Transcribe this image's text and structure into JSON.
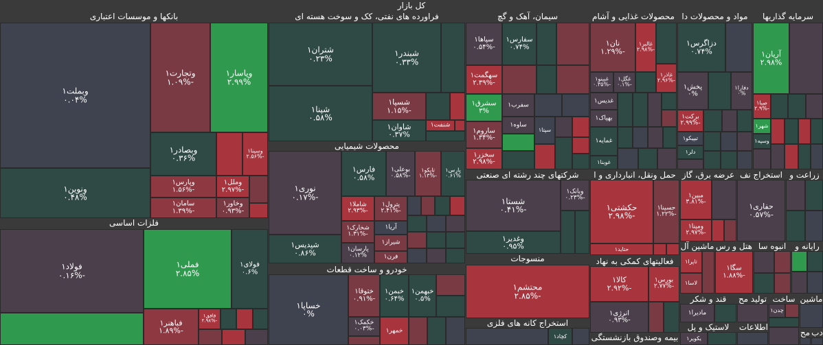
{
  "title": "کل بازار",
  "sectors": [
    {
      "id": "banks",
      "name": "بانکها و موسسات اعتباری"
    },
    {
      "id": "refinery",
      "name": "فراورده های نفتی، کک و سوخت هسته ای"
    },
    {
      "id": "cement",
      "name": "سیمان، آهک و گچ"
    },
    {
      "id": "food",
      "name": "محصولات غذایی و آشام"
    },
    {
      "id": "materials",
      "name": "مواد و محصولات دا"
    },
    {
      "id": "invest",
      "name": "سرمایه گذاریها"
    },
    {
      "id": "chemicals",
      "name": "محصولات شیمیایی"
    },
    {
      "id": "metals",
      "name": "فلزات اساسی"
    },
    {
      "id": "auto",
      "name": "خودرو و ساخت قطعات"
    },
    {
      "id": "multi",
      "name": "شرکتهای چند رشته ای صنعتی"
    },
    {
      "id": "transport",
      "name": "حمل ونقل، انبارداری و ا"
    },
    {
      "id": "utilities",
      "name": "عرضه برق، گاز"
    },
    {
      "id": "oilex",
      "name": "استخراج نف"
    },
    {
      "id": "agri",
      "name": "زراعت و"
    },
    {
      "id": "textile",
      "name": "منسوجات"
    },
    {
      "id": "support",
      "name": "فعالیتهای کمکی به نهاد"
    },
    {
      "id": "computer",
      "name": "رایانه و"
    },
    {
      "id": "cars",
      "name": "ماشین آل"
    },
    {
      "id": "hotel",
      "name": "هتل و رس"
    },
    {
      "id": "mass",
      "name": "انبوه سا"
    },
    {
      "id": "ores",
      "name": "استخراج کانه های فلزی"
    },
    {
      "id": "sugar",
      "name": "قند و شکر"
    },
    {
      "id": "pharma",
      "name": "تولید مح"
    },
    {
      "id": "build",
      "name": "ساخت"
    },
    {
      "id": "machine",
      "name": "ماشین"
    },
    {
      "id": "insurance",
      "name": "بیمه وصندوق بازنشستگی"
    },
    {
      "id": "rubber",
      "name": "لاستیک و پل"
    },
    {
      "id": "info",
      "name": "اطلاعات و"
    },
    {
      "id": "misc1",
      "name": "مح"
    },
    {
      "id": "misc2",
      "name": "دب"
    }
  ],
  "cells": [
    {
      "sym": "وبملت۱",
      "chg": "۰.۰۴%",
      "color": "slate"
    },
    {
      "sym": "وتجارت۱",
      "chg": "-۱.۰۹%",
      "color": "dred"
    },
    {
      "sym": "وپاسار۱",
      "chg": "۲.۹۹%",
      "color": "green"
    },
    {
      "sym": "ونوین۱",
      "chg": "۰.۴۸%",
      "color": "dgreen"
    },
    {
      "sym": "وبصادر۱",
      "chg": "۰.۳۶%",
      "color": "dgreen"
    },
    {
      "sym": "وسینا۱",
      "chg": "-۲.۵۶%",
      "color": "red"
    },
    {
      "sym": "وپارس۱",
      "chg": "-۱.۵۶%",
      "color": "mred"
    },
    {
      "sym": "وملل۱",
      "chg": "-۲.۹۷%",
      "color": "red"
    },
    {
      "sym": "سامان۱",
      "chg": "-۱.۳۹%",
      "color": "mred"
    },
    {
      "sym": "وخاور۱",
      "chg": "-۰.۹۳%",
      "color": "dred"
    },
    {
      "sym": "شتران۱",
      "chg": "۰.۲۳%",
      "color": "dgreen"
    },
    {
      "sym": "شبندر۱",
      "chg": "۰.۳۳%",
      "color": "dgreen"
    },
    {
      "sym": "شپنا۱",
      "chg": "۰.۵۸%",
      "color": "dgreen"
    },
    {
      "sym": "شسپا۱",
      "chg": "-۱.۱۵%",
      "color": "dred"
    },
    {
      "sym": "شاوان۱",
      "chg": "۰.۳۷%",
      "color": "dgreen"
    },
    {
      "sym": "شنفت۱",
      "chg": "",
      "color": "red"
    },
    {
      "sym": "سپاها۱",
      "chg": "-۰.۵۴%",
      "color": "dgrey"
    },
    {
      "sym": "سفارس۱",
      "chg": "۰.۷۴%",
      "color": "dgreen"
    },
    {
      "sym": "سهگمت۱",
      "chg": "-۲.۳۹%",
      "color": "red"
    },
    {
      "sym": "سشرق۱",
      "chg": "۳%",
      "color": "green"
    },
    {
      "sym": "سفرب۱",
      "chg": "",
      "color": "dgrey"
    },
    {
      "sym": "ساروم۱",
      "chg": "-۱.۳۴%",
      "color": "dred"
    },
    {
      "sym": "ساوه۱",
      "chg": "",
      "color": "dgreen"
    },
    {
      "sym": "سپتا۱",
      "chg": "",
      "color": "slate"
    },
    {
      "sym": "سخزر۱",
      "chg": "-۲.۹۸%",
      "color": "red"
    },
    {
      "sym": "نان۱",
      "chg": "-۱.۲۹%",
      "color": "dred"
    },
    {
      "sym": "غالبر۱",
      "chg": "-۲.۹۸%",
      "color": "red"
    },
    {
      "sym": "غبینو۱",
      "chg": "-۰.۳۵%",
      "color": "dgrey"
    },
    {
      "sym": "غگل۱",
      "chg": "-۰.۱%",
      "color": "dgrey"
    },
    {
      "sym": "غاذر۱",
      "chg": "-۲.۹۶%",
      "color": "red"
    },
    {
      "sym": "غدیس۱",
      "chg": "",
      "color": "dgrey"
    },
    {
      "sym": "بهپاک۱",
      "chg": "",
      "color": "dgrey"
    },
    {
      "sym": "غمایه۱",
      "chg": "",
      "color": "dgreen"
    },
    {
      "sym": "غوبنا۱",
      "chg": "",
      "color": "dgreen"
    },
    {
      "sym": "دزاگرس۱",
      "chg": "۰.۷۴%",
      "color": "dgreen"
    },
    {
      "sym": "پخش۱",
      "chg": "۰%",
      "color": "dgrey"
    },
    {
      "sym": "دفارا۱",
      "chg": "۰%",
      "color": "dgrey"
    },
    {
      "sym": "برکت۱",
      "chg": "-۲.۹۹%",
      "color": "red"
    },
    {
      "sym": "تیپیکو۱",
      "chg": "",
      "color": "slate"
    },
    {
      "sym": "دلر۱",
      "chg": "",
      "color": "dgreen"
    },
    {
      "sym": "آریان۱",
      "chg": "۲.۹۸%",
      "color": "green"
    },
    {
      "sym": "صبا۱",
      "chg": "-۲.۹%",
      "color": "red"
    },
    {
      "sym": "شهر۱",
      "chg": "",
      "color": "green"
    },
    {
      "sym": "وسپه۱",
      "chg": "",
      "color": "dgreen"
    },
    {
      "sym": "نوری۱",
      "chg": "-۰.۱۷%",
      "color": "dgrey"
    },
    {
      "sym": "فارس۱",
      "chg": "۰.۵۸%",
      "color": "dgreen"
    },
    {
      "sym": "بوعلی۱",
      "chg": "-۰.۵۸%",
      "color": "dgrey"
    },
    {
      "sym": "تاپکو۱",
      "chg": "-۱.۱۳%",
      "color": "dred"
    },
    {
      "sym": "پارس۱",
      "chg": "۰.۶۱%",
      "color": "dgreen"
    },
    {
      "sym": "شاملا۱",
      "chg": "-۲.۹۳%",
      "color": "red"
    },
    {
      "sym": "پترول۱",
      "chg": "-۲.۴۱%",
      "color": "red"
    },
    {
      "sym": "آریا۱",
      "chg": "",
      "color": "slate"
    },
    {
      "sym": "شخارک۱",
      "chg": "-۱.۳۱%",
      "color": "dred"
    },
    {
      "sym": "شیراز۱",
      "chg": "",
      "color": "dred"
    },
    {
      "sym": "پارسان۱",
      "chg": "۰.۱۲%",
      "color": "dgrey"
    },
    {
      "sym": "فرن۱",
      "chg": "",
      "color": "dred"
    },
    {
      "sym": "شپدیس۱",
      "chg": "۰.۸۶%",
      "color": "dgreen"
    },
    {
      "sym": "فولاد۱",
      "chg": "-۰.۱۶%",
      "color": "dgrey"
    },
    {
      "sym": "فملی۱",
      "chg": "۲.۸۵%",
      "color": "green"
    },
    {
      "sym": "فولای۱",
      "chg": "۰.۶%",
      "color": "dgreen"
    },
    {
      "sym": "فباهنر۱",
      "chg": "-۱.۸۹%",
      "color": "mred"
    },
    {
      "sym": "فافق۱",
      "chg": "-۲.۹۸%",
      "color": "red"
    },
    {
      "sym": "کچاد۱",
      "chg": "",
      "color": "slate"
    },
    {
      "sym": "خساپا۱",
      "chg": "۰%",
      "color": "dgrey"
    },
    {
      "sym": "ختوقا۱",
      "chg": "-۰.۹۱%",
      "color": "dred"
    },
    {
      "sym": "خبمن۱",
      "chg": "۰.۶۴%",
      "color": "dgreen"
    },
    {
      "sym": "خبهمن۱",
      "chg": "۰.۵%",
      "color": "dgreen"
    },
    {
      "sym": "خکمک۱",
      "chg": "-۰.۰۳%",
      "color": "dgrey"
    },
    {
      "sym": "خمهر۱",
      "chg": "",
      "color": "red"
    },
    {
      "sym": "شستا۱",
      "chg": "-۰.۴۱%",
      "color": "dgrey"
    },
    {
      "sym": "وبانک۱",
      "chg": "-۰.۲۳%",
      "color": "dgrey"
    },
    {
      "sym": "وغدیر۱",
      "chg": "۰.۹۵%",
      "color": "dgreen"
    },
    {
      "sym": "حکشتی۱",
      "chg": "-۲.۹۸%",
      "color": "red"
    },
    {
      "sym": "حسینا۱",
      "chg": "-۱.۲۲%",
      "color": "dred"
    },
    {
      "sym": "حتاید۱",
      "chg": "",
      "color": "red"
    },
    {
      "sym": "مبین۱",
      "chg": "-۳.۸۱%",
      "color": "red"
    },
    {
      "sym": "ومپنا۱",
      "chg": "-۲.۹۷%",
      "color": "red"
    },
    {
      "sym": "حفاری۱",
      "chg": "-۰.۵۷%",
      "color": "dgrey"
    },
    {
      "sym": "محتشم۱",
      "chg": "-۲.۸۵%",
      "color": "red"
    },
    {
      "sym": "کالا۱",
      "chg": "-۲.۹۲%",
      "color": "red"
    },
    {
      "sym": "بورس۱",
      "chg": "-۲.۷۷%",
      "color": "red"
    },
    {
      "sym": "انرژی۱",
      "chg": "-۰.۹۳%",
      "color": "dgrey"
    },
    {
      "sym": "تاپرا۱",
      "chg": "",
      "color": "red"
    },
    {
      "sym": "لاسا۱",
      "chg": "",
      "color": "mred"
    },
    {
      "sym": "سگا۱",
      "chg": "-۱.۸۸%",
      "color": "red"
    },
    {
      "sym": "مادیرا۱",
      "chg": "",
      "color": "dgrey"
    },
    {
      "sym": "چدن۱",
      "chg": "",
      "color": "dgrey"
    },
    {
      "sym": "یکویر۱",
      "chg": "",
      "color": "dgrey"
    }
  ],
  "colors": {
    "background": "#3a3a3a",
    "strong_red": "#a8343e",
    "dark_red": "#7a3a44",
    "grey_neutral": "#4a3f4a",
    "slate": "#3f4350",
    "dark_green": "#2f4a44",
    "strong_green": "#2f9a4e"
  }
}
